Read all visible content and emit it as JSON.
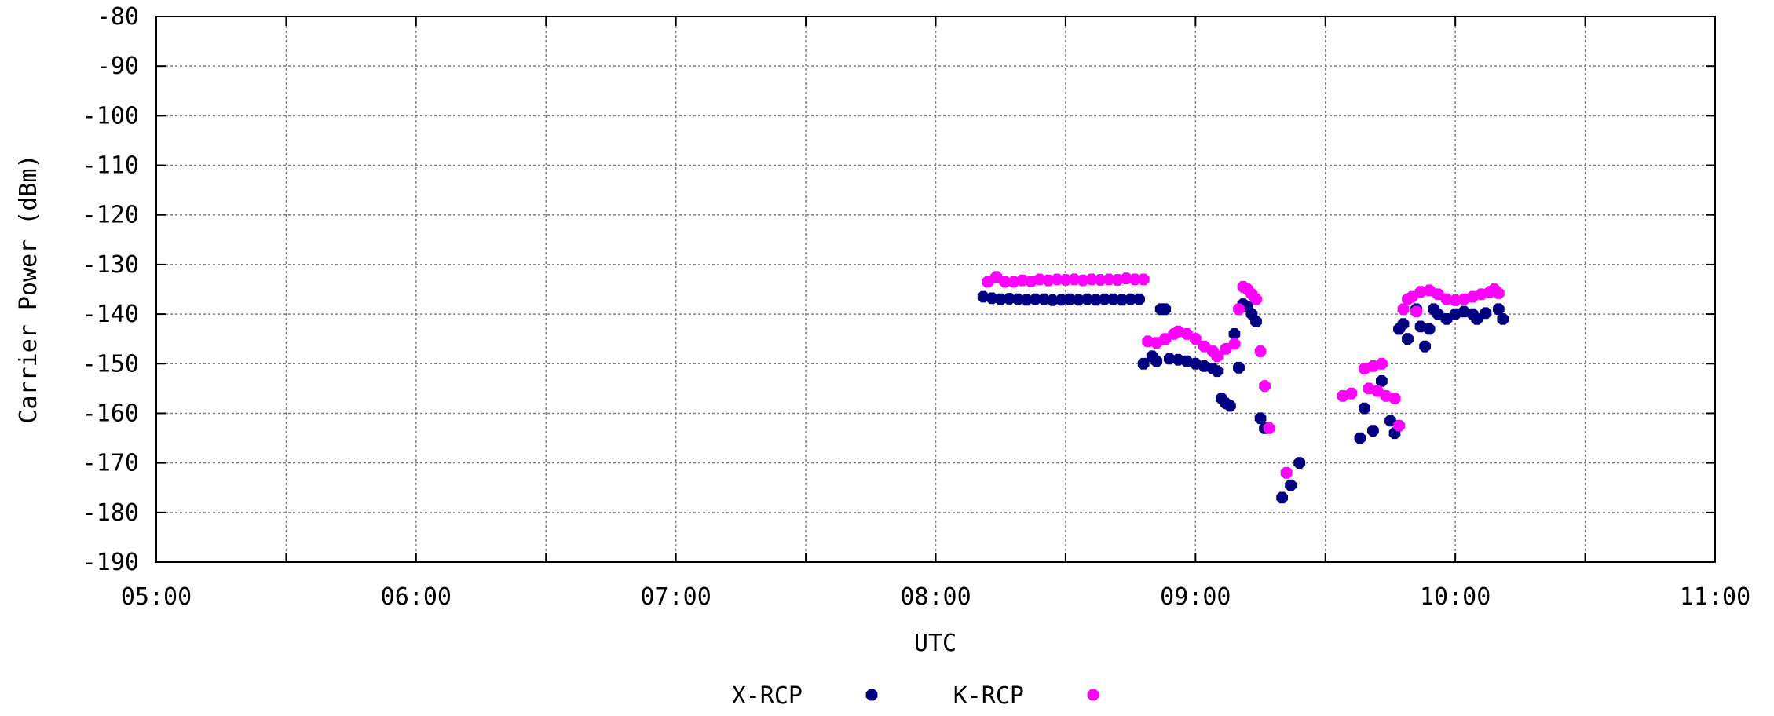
{
  "chart_data": {
    "type": "scatter",
    "title": "",
    "xlabel": "UTC",
    "ylabel": "Carrier Power (dBm)",
    "xlim": [
      "05:00",
      "11:00"
    ],
    "ylim": [
      -190,
      -80
    ],
    "x_ticks": [
      "05:00",
      "06:00",
      "07:00",
      "08:00",
      "09:00",
      "10:00",
      "11:00"
    ],
    "y_ticks": [
      -80,
      -90,
      -100,
      -110,
      -120,
      -130,
      -140,
      -150,
      -160,
      -170,
      -180,
      -190
    ],
    "grid": true,
    "legend_position": "bottom-center",
    "series": [
      {
        "name": "X-RCP",
        "color": "#000080",
        "points": [
          [
            "08:11",
            -136.5
          ],
          [
            "08:13",
            -136.8
          ],
          [
            "08:15",
            -137.0
          ],
          [
            "08:17",
            -136.9
          ],
          [
            "08:19",
            -137.0
          ],
          [
            "08:21",
            -137.1
          ],
          [
            "08:23",
            -137.0
          ],
          [
            "08:25",
            -137.0
          ],
          [
            "08:27",
            -137.2
          ],
          [
            "08:29",
            -137.1
          ],
          [
            "08:31",
            -137.0
          ],
          [
            "08:33",
            -137.1
          ],
          [
            "08:35",
            -137.0
          ],
          [
            "08:37",
            -137.1
          ],
          [
            "08:39",
            -137.0
          ],
          [
            "08:41",
            -137.0
          ],
          [
            "08:43",
            -137.1
          ],
          [
            "08:45",
            -137.0
          ],
          [
            "08:47",
            -137.0
          ],
          [
            "08:48",
            -150.0
          ],
          [
            "08:50",
            -148.5
          ],
          [
            "08:51",
            -149.5
          ],
          [
            "08:52",
            -139.0
          ],
          [
            "08:53",
            -139.0
          ],
          [
            "08:54",
            -149.0
          ],
          [
            "08:56",
            -149.2
          ],
          [
            "08:58",
            -149.5
          ],
          [
            "09:00",
            -150.0
          ],
          [
            "09:02",
            -150.5
          ],
          [
            "09:04",
            -151.0
          ],
          [
            "09:05",
            -151.5
          ],
          [
            "09:06",
            -157.0
          ],
          [
            "09:07",
            -158.0
          ],
          [
            "09:08",
            -158.5
          ],
          [
            "09:09",
            -144.0
          ],
          [
            "09:10",
            -150.8
          ],
          [
            "09:11",
            -138.0
          ],
          [
            "09:12",
            -138.5
          ],
          [
            "09:13",
            -140.0
          ],
          [
            "09:14",
            -141.5
          ],
          [
            "09:15",
            -161.0
          ],
          [
            "09:16",
            -163.0
          ],
          [
            "09:20",
            -177.0
          ],
          [
            "09:22",
            -174.5
          ],
          [
            "09:24",
            -170.0
          ],
          [
            "09:38",
            -165.0
          ],
          [
            "09:39",
            -159.0
          ],
          [
            "09:41",
            -163.5
          ],
          [
            "09:43",
            -153.5
          ],
          [
            "09:45",
            -161.5
          ],
          [
            "09:46",
            -164.0
          ],
          [
            "09:47",
            -143.0
          ],
          [
            "09:48",
            -142.0
          ],
          [
            "09:49",
            -145.0
          ],
          [
            "09:51",
            -139.0
          ],
          [
            "09:52",
            -142.5
          ],
          [
            "09:53",
            -146.5
          ],
          [
            "09:54",
            -143.0
          ],
          [
            "09:55",
            -139.0
          ],
          [
            "09:56",
            -140.0
          ],
          [
            "09:58",
            -141.0
          ],
          [
            "10:00",
            -140.0
          ],
          [
            "10:02",
            -139.5
          ],
          [
            "10:04",
            -140.0
          ],
          [
            "10:05",
            -141.0
          ],
          [
            "10:07",
            -139.8
          ],
          [
            "10:10",
            -139.0
          ],
          [
            "10:11",
            -141.0
          ]
        ]
      },
      {
        "name": "K-RCP",
        "color": "#ff00ff",
        "points": [
          [
            "08:12",
            -133.5
          ],
          [
            "08:14",
            -132.5
          ],
          [
            "08:16",
            -133.5
          ],
          [
            "08:18",
            -133.5
          ],
          [
            "08:20",
            -133.2
          ],
          [
            "08:22",
            -133.4
          ],
          [
            "08:24",
            -133.0
          ],
          [
            "08:26",
            -133.2
          ],
          [
            "08:28",
            -133.0
          ],
          [
            "08:30",
            -133.1
          ],
          [
            "08:32",
            -133.0
          ],
          [
            "08:34",
            -133.2
          ],
          [
            "08:36",
            -133.0
          ],
          [
            "08:38",
            -133.1
          ],
          [
            "08:40",
            -133.0
          ],
          [
            "08:42",
            -133.1
          ],
          [
            "08:44",
            -132.8
          ],
          [
            "08:46",
            -133.0
          ],
          [
            "08:48",
            -133.0
          ],
          [
            "08:49",
            -145.5
          ],
          [
            "08:51",
            -145.8
          ],
          [
            "08:53",
            -145.0
          ],
          [
            "08:55",
            -144.0
          ],
          [
            "08:56",
            -143.5
          ],
          [
            "08:58",
            -144.0
          ],
          [
            "09:00",
            -145.0
          ],
          [
            "09:02",
            -146.5
          ],
          [
            "09:04",
            -147.5
          ],
          [
            "09:05",
            -148.5
          ],
          [
            "09:07",
            -147.0
          ],
          [
            "09:09",
            -146.0
          ],
          [
            "09:10",
            -139.0
          ],
          [
            "09:11",
            -134.5
          ],
          [
            "09:12",
            -135.0
          ],
          [
            "09:13",
            -136.0
          ],
          [
            "09:14",
            -137.0
          ],
          [
            "09:15",
            -147.5
          ],
          [
            "09:16",
            -154.5
          ],
          [
            "09:17",
            -163.0
          ],
          [
            "09:21",
            -172.0
          ],
          [
            "09:34",
            -156.5
          ],
          [
            "09:36",
            -156.0
          ],
          [
            "09:39",
            -151.0
          ],
          [
            "09:41",
            -150.5
          ],
          [
            "09:43",
            -150.0
          ],
          [
            "09:40",
            -155.0
          ],
          [
            "09:42",
            -155.5
          ],
          [
            "09:44",
            -156.5
          ],
          [
            "09:46",
            -157.0
          ],
          [
            "09:47",
            -162.5
          ],
          [
            "09:48",
            -139.0
          ],
          [
            "09:49",
            -137.0
          ],
          [
            "09:50",
            -136.5
          ],
          [
            "09:51",
            -139.5
          ],
          [
            "09:52",
            -135.5
          ],
          [
            "09:54",
            -135.2
          ],
          [
            "09:56",
            -136.0
          ],
          [
            "09:58",
            -137.0
          ],
          [
            "10:00",
            -137.2
          ],
          [
            "10:02",
            -137.0
          ],
          [
            "10:04",
            -136.5
          ],
          [
            "10:06",
            -136.0
          ],
          [
            "10:08",
            -135.5
          ],
          [
            "10:09",
            -135.0
          ],
          [
            "10:10",
            -135.8
          ]
        ]
      }
    ]
  }
}
